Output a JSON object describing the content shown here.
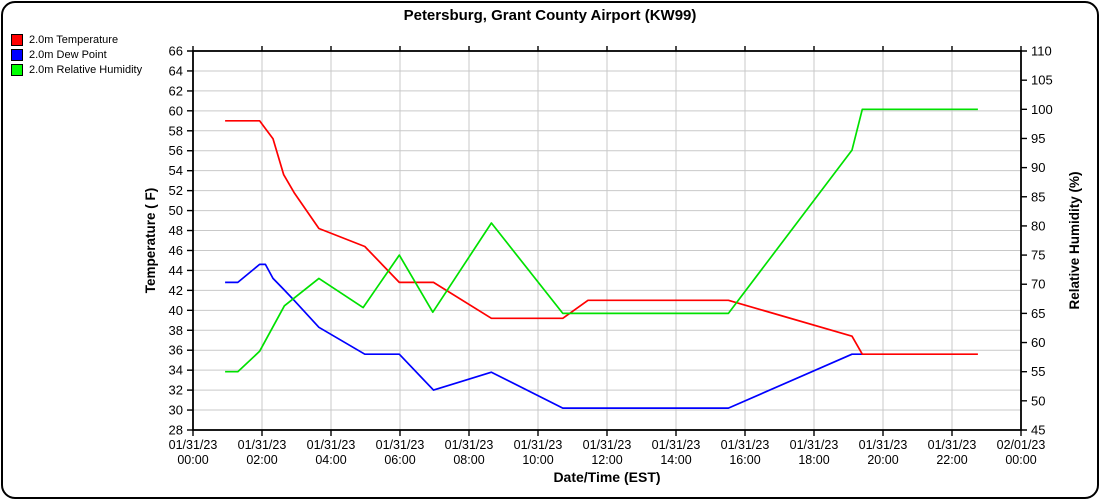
{
  "title": "Petersburg, Grant County Airport (KW99)",
  "legend": {
    "position": "top-left",
    "items": [
      {
        "label": "2.0m Temperature",
        "color": "#ff0000"
      },
      {
        "label": "2.0m Dew Point",
        "color": "#0000ff"
      },
      {
        "label": "2.0m Relative Humidity",
        "color": "#00ff00"
      }
    ]
  },
  "chart_data": {
    "type": "line",
    "title": "Petersburg, Grant County Airport (KW99)",
    "grid": true,
    "gridline_color": "#c9c9c9",
    "axis_color": "#000000",
    "x_axis": {
      "label": "Date/Time (EST)",
      "range_hours": [
        0,
        24
      ],
      "tick_hours": [
        0,
        2,
        4,
        6,
        8,
        10,
        12,
        14,
        16,
        18,
        20,
        22,
        24
      ],
      "tick_dates": [
        "01/31/23",
        "01/31/23",
        "01/31/23",
        "01/31/23",
        "01/31/23",
        "01/31/23",
        "01/31/23",
        "01/31/23",
        "01/31/23",
        "01/31/23",
        "01/31/23",
        "01/31/23",
        "02/01/23"
      ],
      "tick_times": [
        "00:00",
        "02:00",
        "04:00",
        "06:00",
        "08:00",
        "10:00",
        "12:00",
        "14:00",
        "16:00",
        "18:00",
        "20:00",
        "22:00",
        "00:00"
      ]
    },
    "y_left": {
      "label": "Temperature ( F)",
      "min": 28,
      "max": 66,
      "tick_step": 2,
      "ticks": [
        28,
        30,
        32,
        34,
        36,
        38,
        40,
        42,
        44,
        46,
        48,
        50,
        52,
        54,
        56,
        58,
        60,
        62,
        64,
        66
      ]
    },
    "y_right": {
      "label": "Relative Humidity (%)",
      "min": 45,
      "max": 110,
      "tick_step": 5,
      "ticks": [
        45,
        50,
        55,
        60,
        65,
        70,
        75,
        80,
        85,
        90,
        95,
        100,
        105,
        110
      ]
    },
    "series": [
      {
        "name": "2.0m Dew Point",
        "axis": "left",
        "color": "#0000ff",
        "x_hours": [
          0.93,
          1.3,
          1.93,
          2.1,
          2.32,
          2.63,
          2.93,
          3.65,
          4.98,
          5.98,
          6.97,
          8.65,
          10.72,
          15.52,
          19.1,
          19.4
        ],
        "values": [
          42.8,
          42.8,
          44.6,
          44.6,
          43.2,
          42.1,
          41.0,
          38.3,
          35.6,
          35.6,
          32.0,
          33.8,
          30.2,
          30.2,
          35.6,
          35.6
        ]
      },
      {
        "name": "2.0m Temperature",
        "axis": "left",
        "color": "#ff0000",
        "x_hours": [
          0.93,
          1.93,
          2.32,
          2.63,
          2.93,
          3.65,
          4.98,
          5.98,
          6.97,
          8.65,
          10.72,
          11.45,
          15.52,
          19.1,
          19.4,
          22.75
        ],
        "values": [
          59.0,
          59.0,
          57.2,
          53.6,
          51.8,
          48.2,
          46.4,
          42.8,
          42.8,
          39.2,
          39.2,
          41.0,
          41.0,
          37.4,
          35.6,
          35.6
        ]
      },
      {
        "name": "2.0m Relative Humidity",
        "axis": "right",
        "color": "#00e100",
        "x_hours": [
          0.93,
          1.3,
          1.93,
          2.65,
          3.65,
          4.93,
          5.98,
          6.95,
          8.65,
          10.72,
          15.52,
          19.1,
          19.4,
          22.75
        ],
        "values": [
          55.0,
          55.0,
          58.5,
          66.3,
          71.0,
          66.0,
          75.0,
          65.2,
          80.5,
          65.0,
          65.0,
          93.0,
          100.0,
          100.0
        ]
      }
    ]
  }
}
